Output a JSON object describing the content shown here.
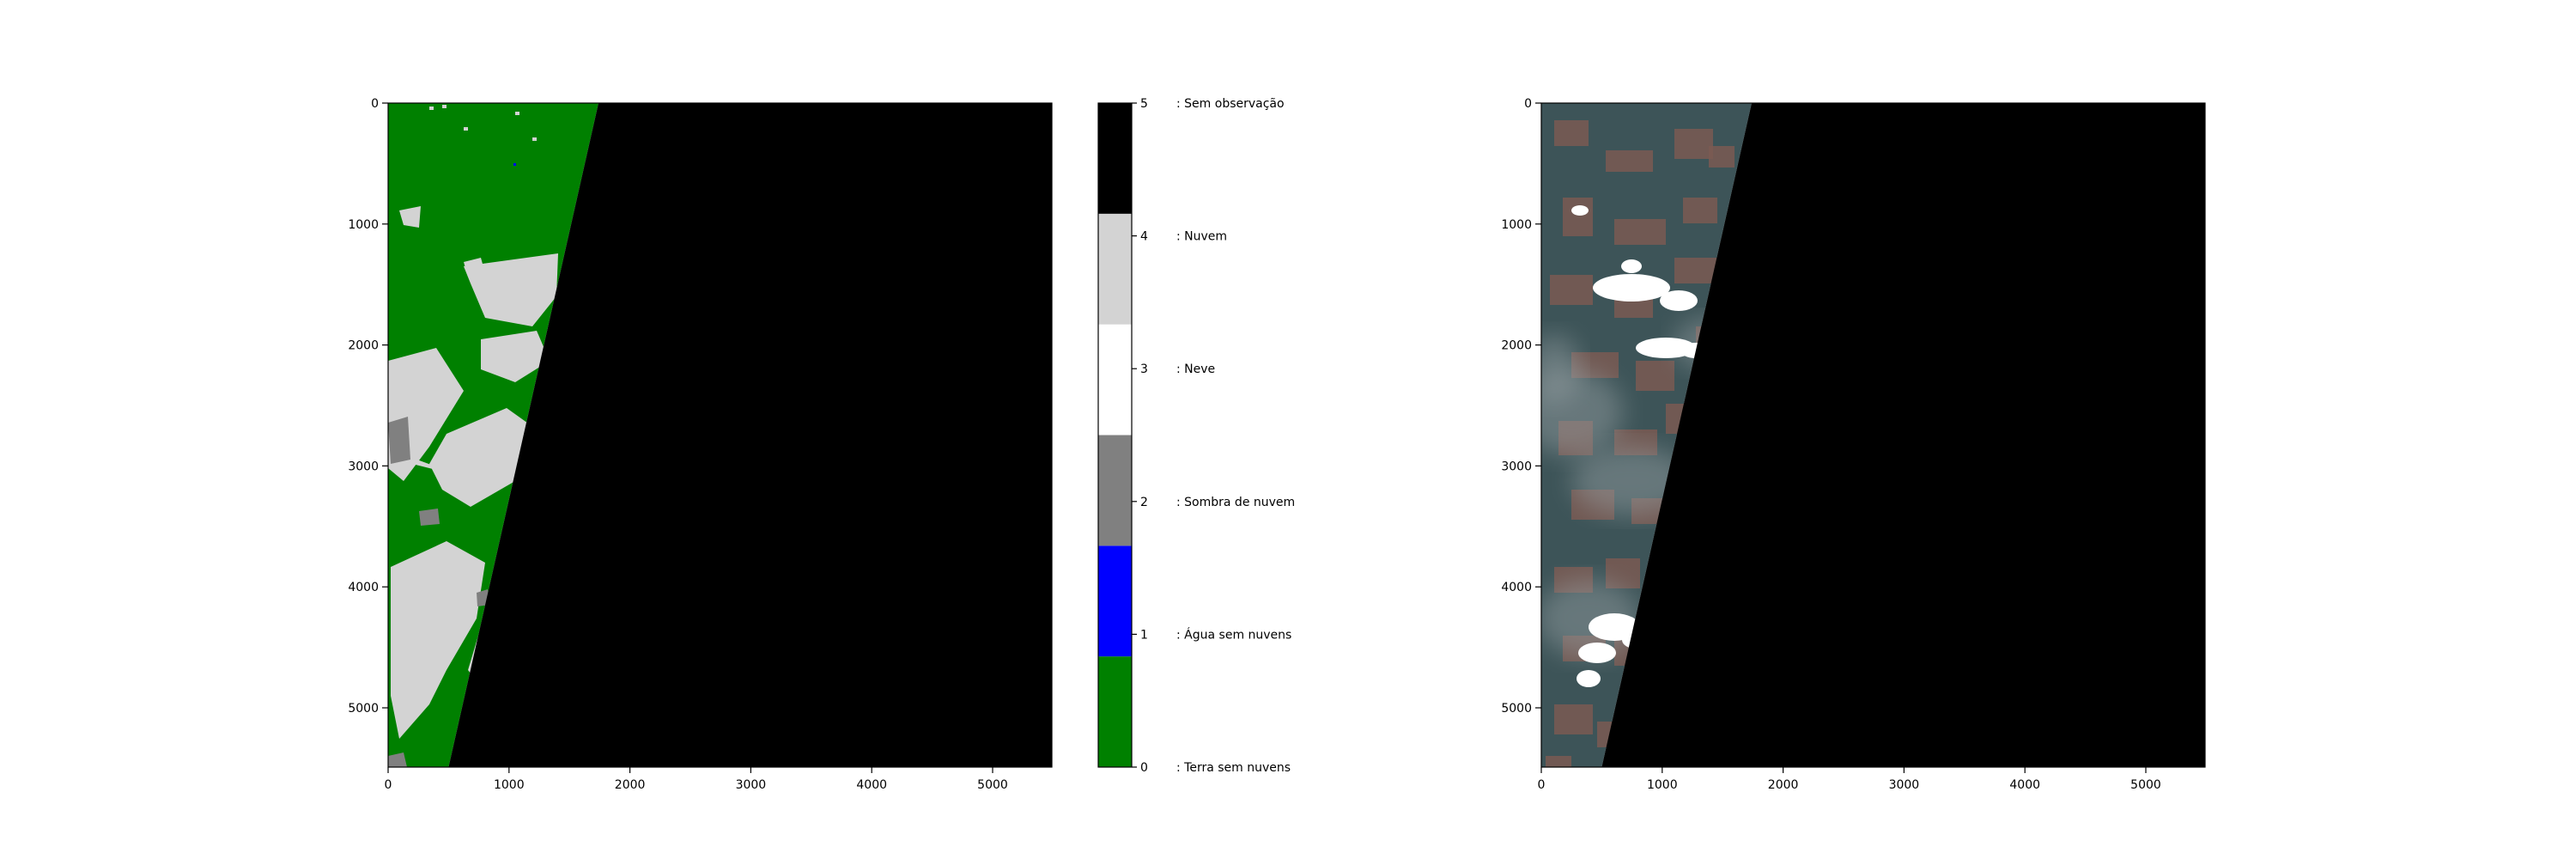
{
  "chart_data": [
    {
      "type": "heatmap",
      "title": "",
      "xlabel": "",
      "ylabel": "",
      "xlim": [
        0,
        5490
      ],
      "ylim": [
        5490,
        0
      ],
      "x_ticks": [
        0,
        1000,
        2000,
        3000,
        4000,
        5000
      ],
      "y_ticks": [
        0,
        1000,
        2000,
        3000,
        4000,
        5000
      ],
      "x_tick_labels": [
        "0",
        "1000",
        "2000",
        "3000",
        "4000",
        "5000"
      ],
      "y_tick_labels": [
        "0",
        "1000",
        "2000",
        "3000",
        "4000",
        "5000"
      ],
      "no_data_boundary": {
        "top_x": 1740,
        "bottom_x": 500
      },
      "classes_present": [
        "Terra sem nuvens",
        "Água sem nuvens",
        "Sombra de nuvem",
        "Nuvem",
        "Sem observação"
      ],
      "grid": false
    },
    {
      "type": "heatmap",
      "title": "",
      "xlabel": "",
      "ylabel": "",
      "xlim": [
        0,
        5490
      ],
      "ylim": [
        5490,
        0
      ],
      "x_ticks": [
        0,
        1000,
        2000,
        3000,
        4000,
        5000
      ],
      "y_ticks": [
        0,
        1000,
        2000,
        3000,
        4000,
        5000
      ],
      "x_tick_labels": [
        "0",
        "1000",
        "2000",
        "3000",
        "4000",
        "5000"
      ],
      "y_tick_labels": [
        "0",
        "1000",
        "2000",
        "3000",
        "4000",
        "5000"
      ],
      "no_data_boundary": {
        "top_x": 1740,
        "bottom_x": 500
      },
      "grid": false
    }
  ],
  "colorbar": {
    "ticks": [
      "0",
      "1",
      "2",
      "3",
      "4",
      "5"
    ],
    "classes": [
      {
        "value": 0,
        "label": ": Terra sem nuvens",
        "color": "#008000"
      },
      {
        "value": 1,
        "label": ": Água sem nuvens",
        "color": "#0000ff"
      },
      {
        "value": 2,
        "label": ": Sombra de nuvem",
        "color": "#808080"
      },
      {
        "value": 3,
        "label": ": Neve",
        "color": "#ffffff"
      },
      {
        "value": 4,
        "label": ": Nuvem",
        "color": "#d3d3d3"
      },
      {
        "value": 5,
        "label": ": Sem observação",
        "color": "#000000"
      }
    ]
  },
  "colors": {
    "land": "#008000",
    "water": "#0000ff",
    "shadow": "#808080",
    "cloud": "#d3d3d3",
    "nodata": "#000000",
    "rgb_forest": "#3d5458",
    "rgb_clearing": "#7a5a52",
    "rgb_haze": "#9aa3a6",
    "rgb_cloud": "#ffffff"
  }
}
